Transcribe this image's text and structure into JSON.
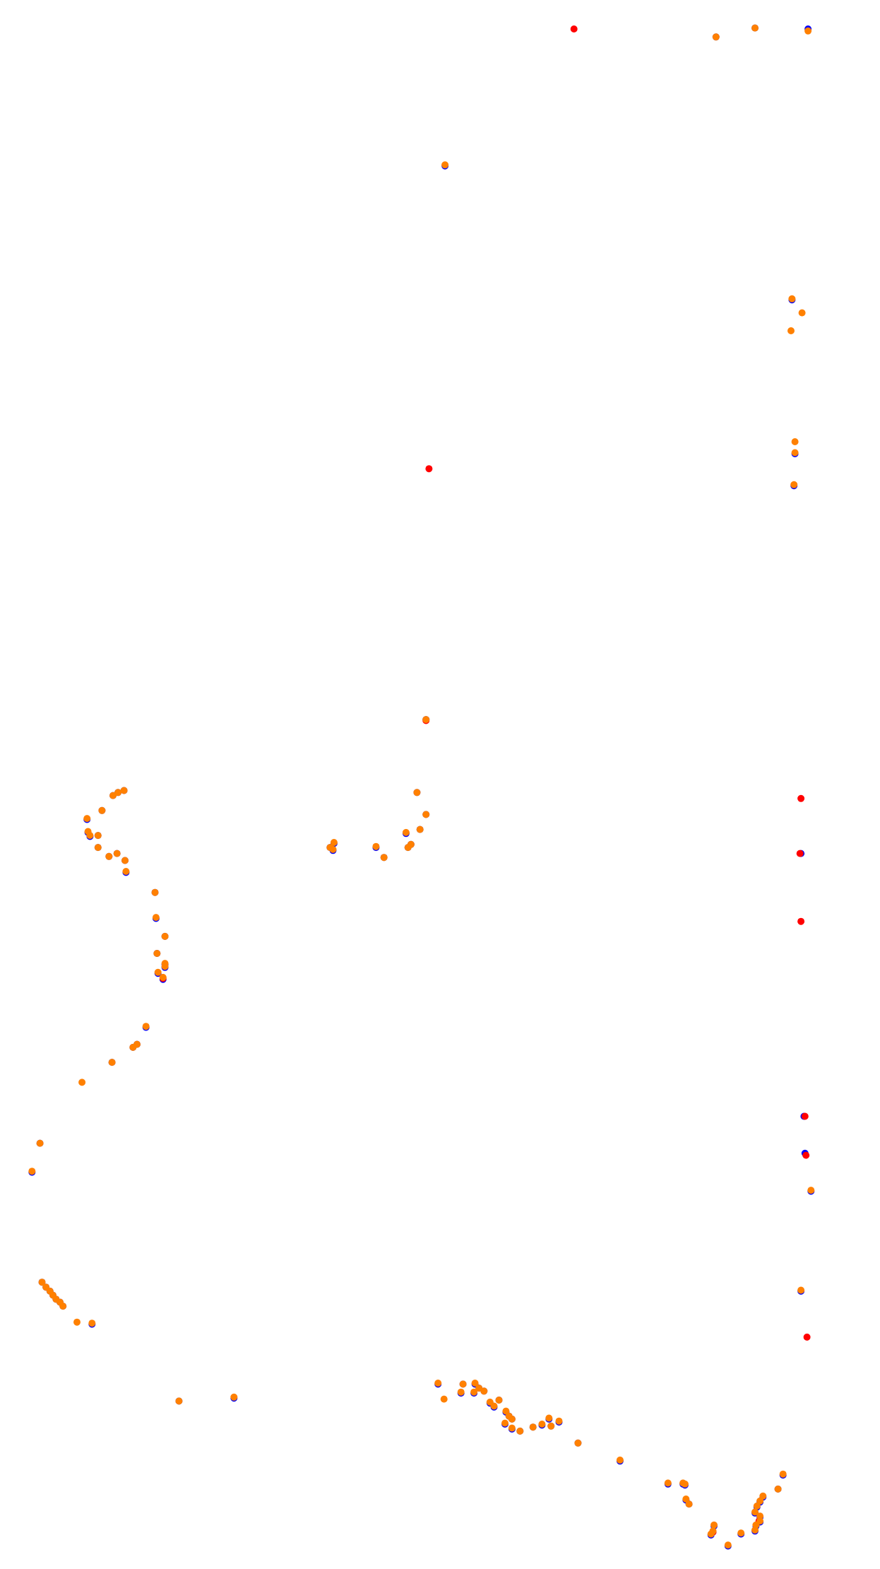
{
  "chart_data": {
    "type": "scatter",
    "title": "",
    "xlabel": "",
    "ylabel": "",
    "axes_visible": false,
    "grid": false,
    "legend": "none",
    "xlim": [
      0,
      880
    ],
    "ylim": [
      0,
      1570
    ],
    "y_direction": "down",
    "series": [
      {
        "color": "#0000ff",
        "points": [
          [
            808,
            29
          ],
          [
            716,
            37
          ],
          [
            755,
            28
          ],
          [
            445,
            166
          ],
          [
            792,
            300
          ],
          [
            795,
            454
          ],
          [
            794,
            486
          ],
          [
            426,
            720
          ],
          [
            801,
            854
          ],
          [
            804,
            1117
          ],
          [
            805,
            1154
          ],
          [
            811,
            1192
          ],
          [
            801,
            1292
          ],
          [
            87,
            820
          ],
          [
            88,
            833
          ],
          [
            90,
            837
          ],
          [
            98,
            836
          ],
          [
            98,
            848
          ],
          [
            109,
            857
          ],
          [
            117,
            854
          ],
          [
            125,
            861
          ],
          [
            126,
            873
          ],
          [
            102,
            811
          ],
          [
            113,
            796
          ],
          [
            118,
            793
          ],
          [
            124,
            791
          ],
          [
            330,
            848
          ],
          [
            334,
            844
          ],
          [
            333,
            851
          ],
          [
            376,
            848
          ],
          [
            384,
            858
          ],
          [
            406,
            834
          ],
          [
            408,
            848
          ],
          [
            411,
            845
          ],
          [
            420,
            830
          ],
          [
            426,
            815
          ],
          [
            417,
            793
          ],
          [
            155,
            893
          ],
          [
            156,
            919
          ],
          [
            165,
            937
          ],
          [
            157,
            954
          ],
          [
            165,
            965
          ],
          [
            165,
            968
          ],
          [
            158,
            974
          ],
          [
            163,
            980
          ],
          [
            146,
            1028
          ],
          [
            137,
            1045
          ],
          [
            133,
            1048
          ],
          [
            112,
            1063
          ],
          [
            40,
            1144
          ],
          [
            32,
            1173
          ],
          [
            42,
            1283
          ],
          [
            46,
            1288
          ],
          [
            50,
            1292
          ],
          [
            53,
            1296
          ],
          [
            56,
            1300
          ],
          [
            60,
            1303
          ],
          [
            63,
            1307
          ],
          [
            92,
            1325
          ],
          [
            179,
            1402
          ],
          [
            234,
            1399
          ],
          [
            438,
            1385
          ],
          [
            463,
            1385
          ],
          [
            475,
            1385
          ],
          [
            474,
            1394
          ],
          [
            461,
            1394
          ],
          [
            479,
            1389
          ],
          [
            484,
            1392
          ],
          [
            490,
            1404
          ],
          [
            494,
            1408
          ],
          [
            499,
            1401
          ],
          [
            506,
            1413
          ],
          [
            509,
            1417
          ],
          [
            512,
            1420
          ],
          [
            505,
            1425
          ],
          [
            512,
            1430
          ],
          [
            520,
            1432
          ],
          [
            533,
            1428
          ],
          [
            542,
            1426
          ],
          [
            551,
            1427
          ],
          [
            559,
            1423
          ],
          [
            549,
            1420
          ],
          [
            578,
            1444
          ],
          [
            620,
            1462
          ],
          [
            668,
            1485
          ],
          [
            683,
            1485
          ],
          [
            685,
            1486
          ],
          [
            686,
            1501
          ],
          [
            689,
            1505
          ],
          [
            714,
            1527
          ],
          [
            713,
            1533
          ],
          [
            711,
            1536
          ],
          [
            728,
            1547
          ],
          [
            741,
            1535
          ],
          [
            755,
            1532
          ],
          [
            756,
            1527
          ],
          [
            760,
            1523
          ],
          [
            760,
            1518
          ],
          [
            755,
            1514
          ],
          [
            757,
            1508
          ],
          [
            760,
            1503
          ],
          [
            763,
            1498
          ],
          [
            778,
            1490
          ],
          [
            783,
            1476
          ]
        ]
      },
      {
        "color": "#ff0000",
        "points": [
          [
            574,
            29
          ],
          [
            429,
            469
          ],
          [
            426,
            721
          ],
          [
            801,
            799
          ],
          [
            800,
            854
          ],
          [
            801,
            922
          ],
          [
            805,
            1117
          ],
          [
            806,
            1156
          ],
          [
            807,
            1338
          ],
          [
            163,
            979
          ],
          [
            713,
            1533
          ],
          [
            759,
            1522
          ]
        ]
      },
      {
        "color": "#ff8000",
        "points": [
          [
            808,
            31
          ],
          [
            716,
            37
          ],
          [
            755,
            28
          ],
          [
            445,
            165
          ],
          [
            792,
            299
          ],
          [
            802,
            313
          ],
          [
            791,
            331
          ],
          [
            795,
            442
          ],
          [
            795,
            453
          ],
          [
            794,
            485
          ],
          [
            426,
            720
          ],
          [
            811,
            1191
          ],
          [
            801,
            1291
          ],
          [
            87,
            819
          ],
          [
            88,
            832
          ],
          [
            90,
            836
          ],
          [
            98,
            836
          ],
          [
            98,
            848
          ],
          [
            109,
            857
          ],
          [
            117,
            854
          ],
          [
            125,
            861
          ],
          [
            126,
            872
          ],
          [
            102,
            811
          ],
          [
            113,
            796
          ],
          [
            118,
            793
          ],
          [
            124,
            791
          ],
          [
            330,
            848
          ],
          [
            334,
            843
          ],
          [
            333,
            850
          ],
          [
            376,
            847
          ],
          [
            384,
            858
          ],
          [
            406,
            833
          ],
          [
            408,
            848
          ],
          [
            411,
            845
          ],
          [
            420,
            830
          ],
          [
            426,
            815
          ],
          [
            417,
            793
          ],
          [
            155,
            893
          ],
          [
            156,
            918
          ],
          [
            165,
            937
          ],
          [
            157,
            954
          ],
          [
            165,
            964
          ],
          [
            165,
            967
          ],
          [
            158,
            973
          ],
          [
            163,
            978
          ],
          [
            146,
            1027
          ],
          [
            137,
            1045
          ],
          [
            133,
            1048
          ],
          [
            112,
            1063
          ],
          [
            82,
            1083
          ],
          [
            40,
            1144
          ],
          [
            32,
            1172
          ],
          [
            42,
            1283
          ],
          [
            46,
            1288
          ],
          [
            50,
            1292
          ],
          [
            53,
            1296
          ],
          [
            56,
            1300
          ],
          [
            60,
            1303
          ],
          [
            63,
            1307
          ],
          [
            77,
            1323
          ],
          [
            92,
            1324
          ],
          [
            179,
            1402
          ],
          [
            234,
            1398
          ],
          [
            438,
            1384
          ],
          [
            444,
            1400
          ],
          [
            463,
            1385
          ],
          [
            475,
            1384
          ],
          [
            474,
            1393
          ],
          [
            461,
            1393
          ],
          [
            479,
            1389
          ],
          [
            484,
            1392
          ],
          [
            490,
            1403
          ],
          [
            494,
            1407
          ],
          [
            499,
            1401
          ],
          [
            506,
            1412
          ],
          [
            509,
            1417
          ],
          [
            512,
            1420
          ],
          [
            505,
            1424
          ],
          [
            512,
            1429
          ],
          [
            520,
            1432
          ],
          [
            533,
            1428
          ],
          [
            542,
            1425
          ],
          [
            551,
            1427
          ],
          [
            559,
            1422
          ],
          [
            549,
            1419
          ],
          [
            578,
            1444
          ],
          [
            620,
            1461
          ],
          [
            668,
            1484
          ],
          [
            683,
            1484
          ],
          [
            685,
            1485
          ],
          [
            686,
            1500
          ],
          [
            689,
            1505
          ],
          [
            714,
            1526
          ],
          [
            713,
            1532
          ],
          [
            711,
            1535
          ],
          [
            728,
            1546
          ],
          [
            741,
            1534
          ],
          [
            755,
            1531
          ],
          [
            756,
            1526
          ],
          [
            760,
            1522
          ],
          [
            760,
            1517
          ],
          [
            755,
            1513
          ],
          [
            757,
            1507
          ],
          [
            760,
            1502
          ],
          [
            763,
            1497
          ],
          [
            778,
            1490
          ],
          [
            783,
            1475
          ]
        ]
      }
    ]
  }
}
